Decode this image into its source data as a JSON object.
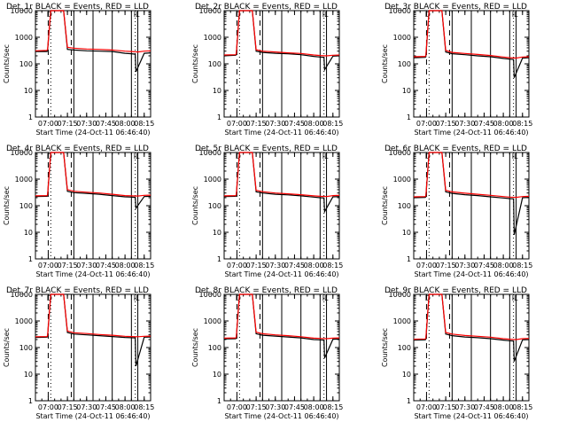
{
  "chart_data": {
    "type": "line",
    "grid": "3x3 panels",
    "yscale": "log",
    "ylim": [
      1,
      10000
    ],
    "ylabel": "Counts/sec",
    "xlabel": "Start Time (24-Oct-11 06:46:40)",
    "xticks": [
      "07:00",
      "07:15",
      "07:30",
      "07:45",
      "08:00",
      "08:15"
    ],
    "yticks": [
      "1",
      "10",
      "100",
      "1000",
      "10000"
    ],
    "colors": {
      "events": "#000000",
      "lld": "#ff0000"
    },
    "marker_labels": {
      "start": "D",
      "end": "IL"
    },
    "panels": [
      {
        "title": "Det_1r BLACK = Events, RED = LLD",
        "series": [
          {
            "name": "Events",
            "color": "#000000",
            "x": [
              "06:50",
              "06:59",
              "06:59:30",
              "07:02",
              "07:05",
              "07:10",
              "07:12",
              "07:15",
              "07:20",
              "07:30",
              "07:40",
              "07:50",
              "08:00",
              "08:05",
              "08:08",
              "08:08:30",
              "08:15",
              "08:20"
            ],
            "y": [
              290,
              290,
              310,
              10000,
              10000,
              10000,
              10000,
              350,
              330,
              310,
              300,
              290,
              250,
              240,
              230,
              50,
              250,
              260
            ]
          },
          {
            "name": "LLD",
            "color": "#ff0000",
            "x": [
              "06:50",
              "06:59",
              "06:59:30",
              "07:02",
              "07:05",
              "07:10",
              "07:12",
              "07:15",
              "07:20",
              "07:30",
              "07:40",
              "07:50",
              "08:00",
              "08:05",
              "08:10",
              "08:15",
              "08:20"
            ],
            "y": [
              310,
              320,
              350,
              10000,
              10000,
              10000,
              10000,
              420,
              390,
              360,
              350,
              330,
              300,
              290,
              280,
              300,
              310
            ]
          }
        ]
      },
      {
        "title": "Det_2r BLACK = Events, RED = LLD",
        "series": [
          {
            "name": "Events",
            "color": "#000000",
            "x": [
              "06:50",
              "06:59",
              "06:59:30",
              "07:02",
              "07:05",
              "07:10",
              "07:12",
              "07:15",
              "07:20",
              "07:30",
              "07:40",
              "07:50",
              "08:00",
              "08:05",
              "08:08",
              "08:08:30",
              "08:15",
              "08:20"
            ],
            "y": [
              200,
              210,
              220,
              10000,
              10000,
              10000,
              10000,
              300,
              270,
              250,
              240,
              220,
              190,
              180,
              175,
              60,
              195,
              200
            ]
          },
          {
            "name": "LLD",
            "color": "#ff0000",
            "x": [
              "06:50",
              "06:59",
              "06:59:30",
              "07:02",
              "07:05",
              "07:10",
              "07:12",
              "07:15",
              "07:20",
              "07:30",
              "07:40",
              "07:50",
              "08:00",
              "08:05",
              "08:10",
              "08:15",
              "08:20"
            ],
            "y": [
              215,
              220,
              240,
              10000,
              10000,
              10000,
              10000,
              340,
              300,
              280,
              260,
              245,
              215,
              205,
              200,
              210,
              215
            ]
          }
        ]
      },
      {
        "title": "Det_3r BLACK = Events, RED = LLD",
        "series": [
          {
            "name": "Events",
            "color": "#000000",
            "x": [
              "06:50",
              "06:59",
              "06:59:30",
              "07:02",
              "07:05",
              "07:10",
              "07:12",
              "07:15",
              "07:20",
              "07:30",
              "07:40",
              "07:50",
              "08:00",
              "08:05",
              "08:08",
              "08:08:30",
              "08:15",
              "08:20"
            ],
            "y": [
              170,
              175,
              185,
              10000,
              10000,
              10000,
              10000,
              280,
              240,
              220,
              200,
              185,
              160,
              150,
              145,
              30,
              165,
              170
            ]
          },
          {
            "name": "LLD",
            "color": "#ff0000",
            "x": [
              "06:50",
              "06:59",
              "06:59:30",
              "07:02",
              "07:05",
              "07:10",
              "07:12",
              "07:15",
              "07:20",
              "07:30",
              "07:40",
              "07:50",
              "08:00",
              "08:05",
              "08:10",
              "08:15",
              "08:20"
            ],
            "y": [
              185,
              190,
              205,
              10000,
              10000,
              10000,
              10000,
              320,
              270,
              245,
              225,
              205,
              180,
              170,
              165,
              180,
              185
            ]
          }
        ]
      },
      {
        "title": "Det_4r BLACK = Events, RED = LLD",
        "series": [
          {
            "name": "Events",
            "color": "#000000",
            "x": [
              "06:50",
              "06:59",
              "06:59:30",
              "07:02",
              "07:05",
              "07:10",
              "07:12",
              "07:15",
              "07:20",
              "07:30",
              "07:40",
              "07:50",
              "08:00",
              "08:05",
              "08:08",
              "08:08:30",
              "08:15",
              "08:20"
            ],
            "y": [
              220,
              225,
              235,
              10000,
              10000,
              10000,
              10000,
              350,
              310,
              290,
              270,
              240,
              215,
              210,
              205,
              80,
              220,
              225
            ]
          },
          {
            "name": "LLD",
            "color": "#ff0000",
            "x": [
              "06:50",
              "06:59",
              "06:59:30",
              "07:02",
              "07:05",
              "07:10",
              "07:12",
              "07:15",
              "07:20",
              "07:30",
              "07:40",
              "07:50",
              "08:00",
              "08:05",
              "08:10",
              "08:15",
              "08:20"
            ],
            "y": [
              235,
              240,
              255,
              10000,
              10000,
              10000,
              10000,
              400,
              350,
              320,
              300,
              270,
              240,
              235,
              230,
              245,
              250
            ]
          }
        ]
      },
      {
        "title": "Det_5r BLACK = Events, RED = LLD",
        "series": [
          {
            "name": "Events",
            "color": "#000000",
            "x": [
              "06:50",
              "06:59",
              "06:59:30",
              "07:02",
              "07:05",
              "07:10",
              "07:12",
              "07:15",
              "07:20",
              "07:30",
              "07:40",
              "07:50",
              "08:00",
              "08:05",
              "08:08",
              "08:08:30",
              "08:15",
              "08:20"
            ],
            "y": [
              220,
              225,
              235,
              10000,
              10000,
              10000,
              10000,
              330,
              300,
              270,
              255,
              235,
              210,
              200,
              195,
              60,
              215,
              220
            ]
          },
          {
            "name": "LLD",
            "color": "#ff0000",
            "x": [
              "06:50",
              "06:59",
              "06:59:30",
              "07:02",
              "07:05",
              "07:10",
              "07:12",
              "07:15",
              "07:20",
              "07:30",
              "07:40",
              "07:50",
              "08:00",
              "08:05",
              "08:10",
              "08:15",
              "08:20"
            ],
            "y": [
              235,
              240,
              255,
              10000,
              10000,
              10000,
              10000,
              380,
              335,
              300,
              280,
              260,
              235,
              225,
              220,
              240,
              245
            ]
          }
        ]
      },
      {
        "title": "Det_6r BLACK = Events, RED = LLD",
        "series": [
          {
            "name": "Events",
            "color": "#000000",
            "x": [
              "06:50",
              "06:59",
              "06:59:30",
              "07:02",
              "07:05",
              "07:10",
              "07:12",
              "07:15",
              "07:20",
              "07:30",
              "07:40",
              "07:50",
              "08:00",
              "08:05",
              "08:08",
              "08:08:30",
              "08:15",
              "08:20"
            ],
            "y": [
              200,
              205,
              215,
              10000,
              10000,
              10000,
              10000,
              330,
              290,
              260,
              240,
              215,
              195,
              185,
              180,
              8,
              200,
              205
            ]
          },
          {
            "name": "LLD",
            "color": "#ff0000",
            "x": [
              "06:50",
              "06:59",
              "06:59:30",
              "07:02",
              "07:05",
              "07:10",
              "07:12",
              "07:15",
              "07:20",
              "07:30",
              "07:40",
              "07:50",
              "08:00",
              "08:05",
              "08:10",
              "08:15",
              "08:20"
            ],
            "y": [
              215,
              220,
              235,
              10000,
              10000,
              10000,
              10000,
              380,
              330,
              295,
              270,
              245,
              220,
              210,
              205,
              220,
              225
            ]
          }
        ]
      },
      {
        "title": "Det_7r BLACK = Events, RED = LLD",
        "series": [
          {
            "name": "Events",
            "color": "#000000",
            "x": [
              "06:50",
              "06:59",
              "06:59:30",
              "07:02",
              "07:05",
              "07:10",
              "07:12",
              "07:15",
              "07:20",
              "07:30",
              "07:40",
              "07:50",
              "08:00",
              "08:05",
              "08:08",
              "08:08:30",
              "08:15",
              "08:20"
            ],
            "y": [
              240,
              245,
              260,
              10000,
              10000,
              10000,
              10000,
              370,
              320,
              300,
              280,
              260,
              240,
              235,
              230,
              20,
              245,
              250
            ]
          },
          {
            "name": "LLD",
            "color": "#ff0000",
            "x": [
              "06:50",
              "06:59",
              "06:59:30",
              "07:02",
              "07:05",
              "07:10",
              "07:12",
              "07:15",
              "07:20",
              "07:30",
              "07:40",
              "07:50",
              "08:00",
              "08:05",
              "08:10",
              "08:15",
              "08:20"
            ],
            "y": [
              255,
              260,
              280,
              10000,
              10000,
              10000,
              10000,
              420,
              360,
              335,
              310,
              290,
              265,
              260,
              255,
              265,
              270
            ]
          }
        ]
      },
      {
        "title": "Det_8r BLACK = Events, RED = LLD",
        "series": [
          {
            "name": "Events",
            "color": "#000000",
            "x": [
              "06:50",
              "06:59",
              "06:59:30",
              "07:02",
              "07:05",
              "07:10",
              "07:12",
              "07:15",
              "07:20",
              "07:30",
              "07:40",
              "07:50",
              "08:00",
              "08:05",
              "08:08",
              "08:08:30",
              "08:15",
              "08:20"
            ],
            "y": [
              210,
              215,
              225,
              10000,
              10000,
              10000,
              10000,
              330,
              290,
              270,
              250,
              230,
              200,
              195,
              190,
              40,
              205,
              210
            ]
          },
          {
            "name": "LLD",
            "color": "#ff0000",
            "x": [
              "06:50",
              "06:59",
              "06:59:30",
              "07:02",
              "07:05",
              "07:10",
              "07:12",
              "07:15",
              "07:20",
              "07:30",
              "07:40",
              "07:50",
              "08:00",
              "08:05",
              "08:10",
              "08:15",
              "08:20"
            ],
            "y": [
              225,
              230,
              245,
              10000,
              10000,
              10000,
              10000,
              380,
              330,
              300,
              280,
              255,
              225,
              220,
              215,
              225,
              230
            ]
          }
        ]
      },
      {
        "title": "Det_9r BLACK = Events, RED = LLD",
        "series": [
          {
            "name": "Events",
            "color": "#000000",
            "x": [
              "06:50",
              "06:59",
              "06:59:30",
              "07:02",
              "07:05",
              "07:10",
              "07:12",
              "07:15",
              "07:20",
              "07:30",
              "07:40",
              "07:50",
              "08:00",
              "08:05",
              "08:08",
              "08:08:30",
              "08:15",
              "08:20"
            ],
            "y": [
              190,
              195,
              205,
              10000,
              10000,
              10000,
              10000,
              320,
              280,
              250,
              235,
              215,
              190,
              180,
              175,
              30,
              195,
              200
            ]
          },
          {
            "name": "LLD",
            "color": "#ff0000",
            "x": [
              "06:50",
              "06:59",
              "06:59:30",
              "07:02",
              "07:05",
              "07:10",
              "07:12",
              "07:15",
              "07:20",
              "07:30",
              "07:40",
              "07:50",
              "08:00",
              "08:05",
              "08:10",
              "08:15",
              "08:20"
            ],
            "y": [
              205,
              210,
              225,
              10000,
              10000,
              10000,
              10000,
              370,
              320,
              285,
              265,
              245,
              215,
              205,
              200,
              215,
              220
            ]
          }
        ]
      }
    ]
  }
}
